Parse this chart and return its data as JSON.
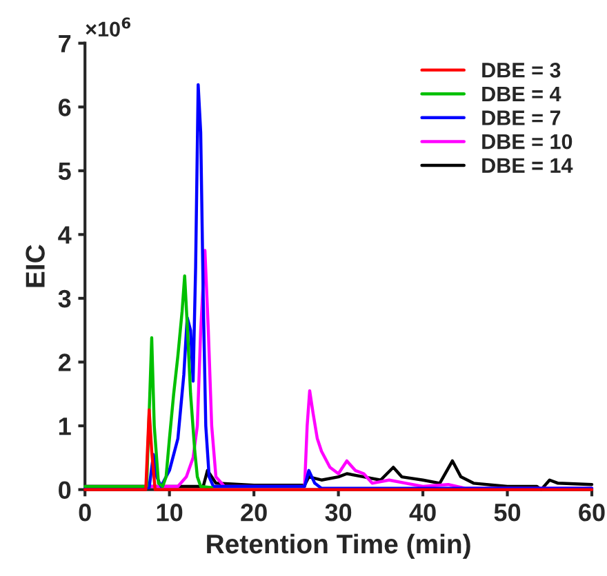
{
  "chart_data": {
    "type": "line",
    "xlabel": "Retention Time (min)",
    "ylabel": "EIC",
    "annotations": [
      "×10$^{6}$"
    ],
    "xlim": [
      0,
      60
    ],
    "xticks": [
      0,
      10,
      20,
      30,
      40,
      50,
      60
    ],
    "ylim": [
      0,
      7
    ],
    "yticks": [
      0,
      1,
      2,
      3,
      4,
      5,
      6,
      7
    ],
    "grid": false,
    "legend": "top right",
    "marker": "none",
    "line_style": "solid",
    "series": [
      {
        "name": "DBE = 3",
        "color": "#ff0000",
        "x": [
          0,
          7.2,
          7.6,
          7.9,
          8.3,
          9,
          20,
          40,
          60
        ],
        "values": [
          0,
          0,
          1.25,
          0.6,
          0,
          0,
          0,
          0,
          0
        ]
      },
      {
        "name": "DBE = 4",
        "color": "#00c000",
        "x": [
          0,
          7.3,
          7.6,
          7.9,
          8.2,
          8.7,
          9.2,
          9.6,
          10,
          10.5,
          11,
          11.5,
          11.8,
          12.1,
          12.5,
          13,
          13.3,
          13.7,
          15
        ],
        "values": [
          0.05,
          0.05,
          1.2,
          2.38,
          1.0,
          0.1,
          0.05,
          0.2,
          0.8,
          1.5,
          2.1,
          2.8,
          3.35,
          2.6,
          1.5,
          0.6,
          0.2,
          0.05,
          0.03
        ]
      },
      {
        "name": "DBE = 7",
        "color": "#0000ff",
        "x": [
          0,
          7.6,
          8.1,
          8.5,
          9,
          10,
          11,
          11.7,
          12.1,
          12.5,
          12.8,
          13.1,
          13.4,
          13.7,
          14,
          14.3,
          14.7,
          15.2,
          26,
          26.5,
          27.2,
          28,
          40,
          60
        ],
        "values": [
          0.03,
          0.03,
          0.55,
          0.2,
          0.05,
          0.3,
          0.8,
          1.8,
          2.7,
          2.5,
          1.7,
          3.5,
          6.35,
          5.6,
          3.0,
          1.0,
          0.2,
          0.05,
          0.05,
          0.3,
          0.1,
          0.02,
          0.02,
          0.02
        ]
      },
      {
        "name": "DBE = 10",
        "color": "#ff00ff",
        "x": [
          0,
          11,
          12,
          12.8,
          13.3,
          13.7,
          14.2,
          14.6,
          15,
          15.5,
          16.5,
          26,
          26.3,
          26.6,
          27,
          27.5,
          28,
          29,
          30,
          31,
          32,
          33,
          34,
          36,
          38,
          40,
          43,
          45,
          50,
          60
        ],
        "values": [
          0.05,
          0.05,
          0.2,
          0.5,
          1.0,
          2.5,
          3.75,
          2.5,
          1.0,
          0.2,
          0.05,
          0.05,
          1.0,
          1.55,
          1.2,
          0.8,
          0.6,
          0.35,
          0.25,
          0.45,
          0.3,
          0.25,
          0.1,
          0.15,
          0.1,
          0.05,
          0.08,
          0.02,
          0.02,
          0.02
        ]
      },
      {
        "name": "DBE = 14",
        "color": "#000000",
        "x": [
          0,
          14,
          14.5,
          15.5,
          20,
          26,
          26.5,
          28,
          30,
          31,
          33,
          35,
          36.5,
          37.5,
          40,
          42,
          43.5,
          44.5,
          46,
          50,
          53.5,
          54,
          55,
          56,
          60
        ],
        "values": [
          0.05,
          0.05,
          0.3,
          0.1,
          0.07,
          0.07,
          0.2,
          0.15,
          0.2,
          0.25,
          0.2,
          0.15,
          0.35,
          0.2,
          0.15,
          0.1,
          0.45,
          0.2,
          0.1,
          0.05,
          0.05,
          0.0,
          0.15,
          0.1,
          0.08
        ]
      }
    ]
  }
}
